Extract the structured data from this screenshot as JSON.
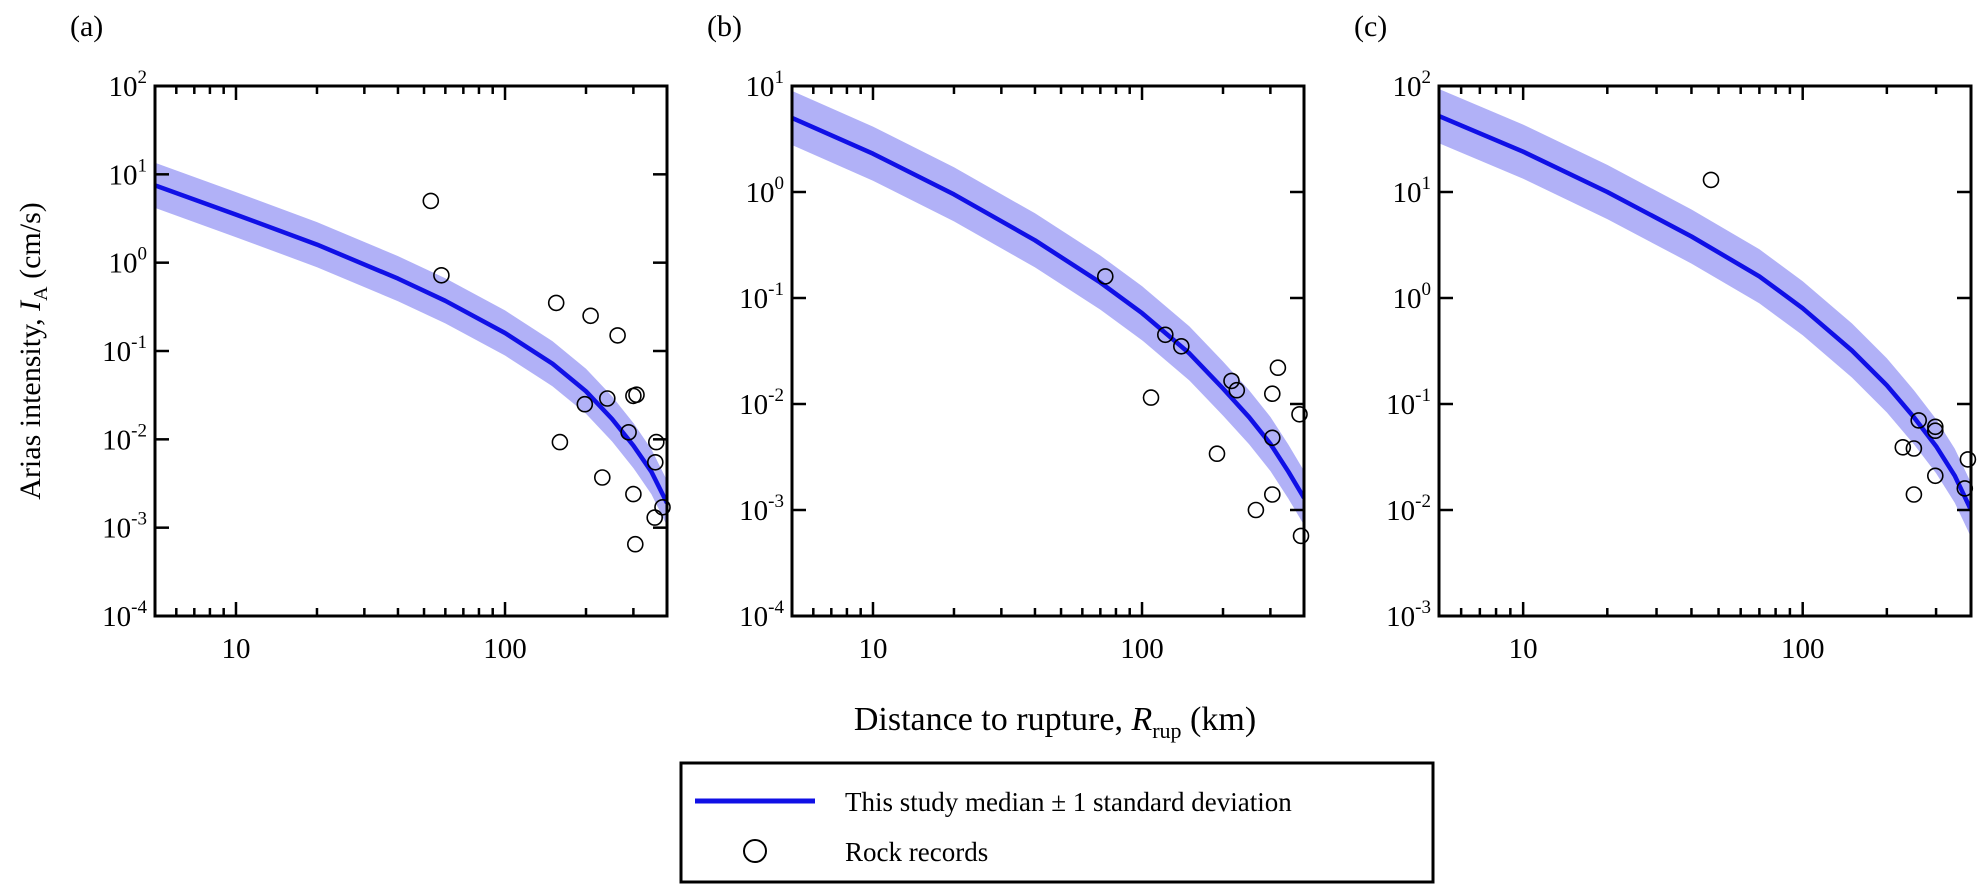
{
  "chart_data": [
    {
      "panel_label": "(a)",
      "type": "scatter",
      "x_scale": "log",
      "y_scale": "log",
      "xlim": [
        5,
        400
      ],
      "ylim": [
        0.0001,
        100
      ],
      "x_tick_labels": [
        {
          "value": 10,
          "label": "10"
        },
        {
          "value": 100,
          "label": "100"
        }
      ],
      "y_tick_labels": [
        {
          "value": 100,
          "base": "10",
          "exp": "2"
        },
        {
          "value": 10,
          "base": "10",
          "exp": "1"
        },
        {
          "value": 1,
          "base": "10",
          "exp": "0"
        },
        {
          "value": 0.1,
          "base": "10",
          "exp": "-1"
        },
        {
          "value": 0.01,
          "base": "10",
          "exp": "-2"
        },
        {
          "value": 0.001,
          "base": "10",
          "exp": "-3"
        },
        {
          "value": 0.0001,
          "base": "10",
          "exp": "-4"
        }
      ],
      "median_curve": {
        "x": [
          5,
          10,
          20,
          40,
          60,
          100,
          150,
          200,
          250,
          300,
          350,
          400
        ],
        "y": [
          7.5,
          3.5,
          1.6,
          0.66,
          0.37,
          0.16,
          0.072,
          0.035,
          0.017,
          0.0085,
          0.0043,
          0.0019
        ]
      },
      "sigma_factor": 1.8,
      "rock_records": [
        {
          "x": 53,
          "y": 5.0
        },
        {
          "x": 58,
          "y": 0.72
        },
        {
          "x": 155,
          "y": 0.35
        },
        {
          "x": 208,
          "y": 0.25
        },
        {
          "x": 262,
          "y": 0.15
        },
        {
          "x": 198,
          "y": 0.025
        },
        {
          "x": 240,
          "y": 0.029
        },
        {
          "x": 300,
          "y": 0.031
        },
        {
          "x": 308,
          "y": 0.032
        },
        {
          "x": 288,
          "y": 0.012
        },
        {
          "x": 160,
          "y": 0.0093
        },
        {
          "x": 365,
          "y": 0.0093
        },
        {
          "x": 362,
          "y": 0.0055
        },
        {
          "x": 230,
          "y": 0.0037
        },
        {
          "x": 300,
          "y": 0.0024
        },
        {
          "x": 385,
          "y": 0.0017
        },
        {
          "x": 360,
          "y": 0.0013
        },
        {
          "x": 305,
          "y": 0.00065
        }
      ]
    },
    {
      "panel_label": "(b)",
      "type": "scatter",
      "x_scale": "log",
      "y_scale": "log",
      "xlim": [
        5,
        400
      ],
      "ylim": [
        0.0001,
        10
      ],
      "x_tick_labels": [
        {
          "value": 10,
          "label": "10"
        },
        {
          "value": 100,
          "label": "100"
        }
      ],
      "y_tick_labels": [
        {
          "value": 10,
          "base": "10",
          "exp": "1"
        },
        {
          "value": 1,
          "base": "10",
          "exp": "0"
        },
        {
          "value": 0.1,
          "base": "10",
          "exp": "-1"
        },
        {
          "value": 0.01,
          "base": "10",
          "exp": "-2"
        },
        {
          "value": 0.001,
          "base": "10",
          "exp": "-3"
        },
        {
          "value": 0.0001,
          "base": "10",
          "exp": "-4"
        }
      ],
      "median_curve": {
        "x": [
          5,
          10,
          20,
          40,
          70,
          100,
          150,
          200,
          250,
          300,
          350,
          400
        ],
        "y": [
          5.0,
          2.3,
          0.95,
          0.35,
          0.14,
          0.072,
          0.03,
          0.014,
          0.0075,
          0.0042,
          0.0023,
          0.0013
        ]
      },
      "sigma_factor": 1.8,
      "rock_records": [
        {
          "x": 73,
          "y": 0.16
        },
        {
          "x": 122,
          "y": 0.045
        },
        {
          "x": 140,
          "y": 0.035
        },
        {
          "x": 108,
          "y": 0.0115
        },
        {
          "x": 215,
          "y": 0.0165
        },
        {
          "x": 225,
          "y": 0.0135
        },
        {
          "x": 320,
          "y": 0.022
        },
        {
          "x": 305,
          "y": 0.0125
        },
        {
          "x": 385,
          "y": 0.008
        },
        {
          "x": 305,
          "y": 0.0048
        },
        {
          "x": 190,
          "y": 0.0034
        },
        {
          "x": 305,
          "y": 0.0014
        },
        {
          "x": 265,
          "y": 0.001
        },
        {
          "x": 390,
          "y": 0.00057
        }
      ]
    },
    {
      "panel_label": "(c)",
      "type": "scatter",
      "x_scale": "log",
      "y_scale": "log",
      "xlim": [
        5,
        400
      ],
      "ylim": [
        0.001,
        100
      ],
      "x_tick_labels": [
        {
          "value": 10,
          "label": "10"
        },
        {
          "value": 100,
          "label": "100"
        }
      ],
      "y_tick_labels": [
        {
          "value": 100,
          "base": "10",
          "exp": "2"
        },
        {
          "value": 10,
          "base": "10",
          "exp": "1"
        },
        {
          "value": 1,
          "base": "10",
          "exp": "0"
        },
        {
          "value": 0.1,
          "base": "10",
          "exp": "-1"
        },
        {
          "value": 0.01,
          "base": "10",
          "exp": "-2"
        },
        {
          "value": 0.001,
          "base": "10",
          "exp": "-3"
        }
      ],
      "median_curve": {
        "x": [
          5,
          10,
          20,
          40,
          70,
          100,
          150,
          200,
          250,
          300,
          350,
          400
        ],
        "y": [
          52,
          24,
          10,
          3.8,
          1.6,
          0.8,
          0.32,
          0.15,
          0.075,
          0.04,
          0.021,
          0.01
        ]
      },
      "sigma_factor": 1.8,
      "rock_records": [
        {
          "x": 47,
          "y": 13
        },
        {
          "x": 260,
          "y": 0.07
        },
        {
          "x": 298,
          "y": 0.061
        },
        {
          "x": 298,
          "y": 0.056
        },
        {
          "x": 228,
          "y": 0.039
        },
        {
          "x": 250,
          "y": 0.038
        },
        {
          "x": 390,
          "y": 0.03
        },
        {
          "x": 298,
          "y": 0.021
        },
        {
          "x": 380,
          "y": 0.016
        },
        {
          "x": 250,
          "y": 0.014
        }
      ]
    }
  ],
  "axes": {
    "ylabel_prefix": "Arias intensity, ",
    "ylabel_symbol": "I",
    "ylabel_symbol_sub": "A",
    "ylabel_unit": " (cm/s)",
    "xlabel_prefix": "Distance to rupture, ",
    "xlabel_symbol": "R",
    "xlabel_symbol_sub": "rup",
    "xlabel_unit": " (km)"
  },
  "legend": {
    "median_label": "This study median ± 1 standard deviation",
    "rock_label": "Rock records"
  },
  "colors": {
    "median_line": "#1010e6",
    "band_fill": "#b1b1f7",
    "marker_edge": "#000000",
    "axis": "#000000"
  }
}
